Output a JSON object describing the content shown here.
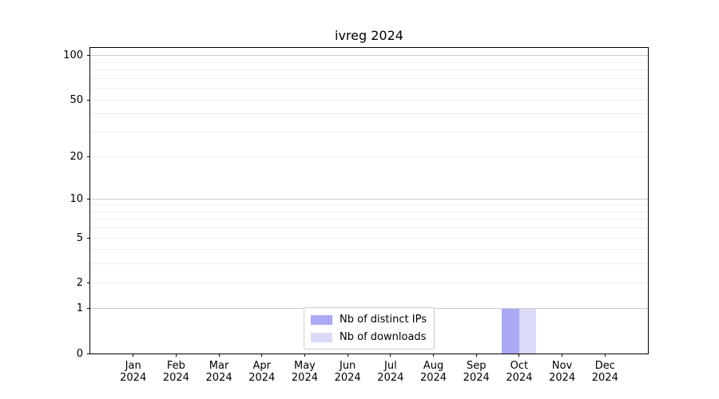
{
  "chart_data": {
    "type": "bar",
    "title": "ivreg 2024",
    "categories": [
      "Jan 2024",
      "Feb 2024",
      "Mar 2024",
      "Apr 2024",
      "May 2024",
      "Jun 2024",
      "Jul 2024",
      "Aug 2024",
      "Sep 2024",
      "Oct 2024",
      "Nov 2024",
      "Dec 2024"
    ],
    "series": [
      {
        "name": "Nb of distinct IPs",
        "color": "#a9a9f4",
        "values": [
          0,
          0,
          0,
          0,
          0,
          0,
          0,
          0,
          0,
          1,
          0,
          0
        ]
      },
      {
        "name": "Nb of downloads",
        "color": "#dbdbf8",
        "values": [
          0,
          0,
          0,
          0,
          0,
          0,
          0,
          0,
          0,
          1,
          0,
          0
        ]
      }
    ],
    "xlabel": "",
    "ylabel": "",
    "yscale": "log1p",
    "ylim": [
      0,
      113
    ],
    "yticks": [
      0,
      1,
      2,
      5,
      10,
      20,
      50,
      100
    ],
    "ygrid_major": [
      1,
      10,
      100
    ],
    "ygrid_minor": [
      2,
      3,
      4,
      5,
      6,
      7,
      8,
      9,
      20,
      30,
      40,
      50,
      60,
      70,
      80,
      90
    ],
    "grid_major_color": "#cccccc",
    "grid_minor_color": "#ededed",
    "legend_position": "lower center",
    "axis_color": "#000000",
    "background_color": "#ffffff"
  }
}
